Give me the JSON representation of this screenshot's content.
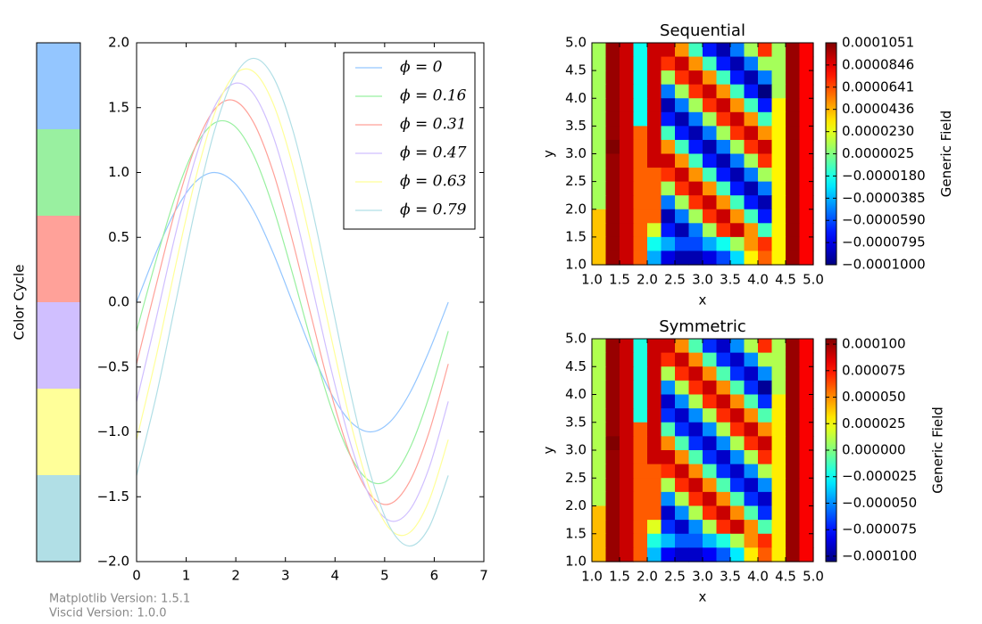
{
  "chart_data": [
    {
      "type": "swatches",
      "label": "Color Cycle",
      "colors": [
        "#94c6ff",
        "#99f0a0",
        "#ffa199",
        "#d0bfff",
        "#ffff99",
        "#b1dfe6"
      ]
    },
    {
      "type": "line",
      "xlim": [
        0,
        7
      ],
      "ylim": [
        -2,
        2
      ],
      "xticks": [
        0,
        1,
        2,
        3,
        4,
        5,
        6,
        7
      ],
      "yticks": [
        {
          "value": -2,
          "label": "−2.0"
        },
        {
          "value": -1.5,
          "label": "−1.5"
        },
        {
          "value": -1,
          "label": "−1.0"
        },
        {
          "value": -0.5,
          "label": "−0.5"
        },
        {
          "value": 0,
          "label": "0.0"
        },
        0.5,
        {
          "value": 1,
          "label": "1.0"
        },
        1.5,
        {
          "value": 2,
          "label": "2.0"
        }
      ],
      "legend": "upper right",
      "x": [
        0,
        0.393,
        0.785,
        1.178,
        1.571,
        1.963,
        2.356,
        2.749,
        3.142,
        3.534,
        3.927,
        4.32,
        4.712,
        5.105,
        5.498,
        5.89,
        6.283
      ],
      "series": [
        {
          "name": "ϕ = 0",
          "color": "#94c6ff",
          "values": [
            0,
            0.383,
            0.707,
            0.924,
            1,
            0.924,
            0.707,
            0.383,
            0,
            -0.383,
            -0.707,
            -0.924,
            -1,
            -0.924,
            -0.707,
            -0.383,
            0
          ]
        },
        {
          "name": "ϕ = 0.16",
          "color": "#99f0a0",
          "values": [
            -0.223,
            0.323,
            0.82,
            1.192,
            1.382,
            1.362,
            1.135,
            0.735,
            0.223,
            -0.323,
            -0.82,
            -1.192,
            -1.382,
            -1.362,
            -1.135,
            -0.735,
            -0.223
          ]
        },
        {
          "name": "ϕ = 0.31",
          "color": "#ffa199",
          "values": [
            -0.476,
            0.129,
            0.714,
            1.191,
            1.486,
            1.555,
            1.387,
            1.009,
            0.476,
            -0.129,
            -0.714,
            -1.191,
            -1.486,
            -1.555,
            -1.387,
            -1.009,
            -0.476
          ]
        },
        {
          "name": "ϕ = 0.47",
          "color": "#d0bfff",
          "values": [
            -0.765,
            -0.13,
            0.525,
            1.099,
            1.507,
            1.685,
            1.607,
            1.284,
            0.765,
            0.13,
            -0.525,
            -1.099,
            -1.507,
            -1.685,
            -1.607,
            -1.284,
            -0.765
          ]
        },
        {
          "name": "ϕ = 0.63",
          "color": "#ffff99",
          "values": [
            -1.06,
            -0.423,
            0.279,
            0.937,
            1.454,
            1.749,
            1.778,
            1.535,
            1.06,
            0.423,
            -0.279,
            -0.937,
            -1.454,
            -1.749,
            -1.778,
            -1.535,
            -1.06
          ]
        },
        {
          "name": "ϕ = 0.79",
          "color": "#b1dfe6",
          "values": [
            -1.336,
            -0.728,
            -0.009,
            0.711,
            1.323,
            1.733,
            1.88,
            1.74,
            1.336,
            0.728,
            0.009,
            -0.711,
            -1.323,
            -1.733,
            -1.88,
            -1.74,
            -1.336
          ]
        }
      ]
    },
    {
      "type": "heatmap",
      "title": "Sequential",
      "xlabel": "x",
      "ylabel": "y",
      "colorbar_label": "Generic Field",
      "colormap": "jet",
      "xlim": [
        1,
        5
      ],
      "ylim": [
        1,
        5
      ],
      "clim": [
        -0.0001,
        0.0001051
      ],
      "xticks": [
        {
          "value": 1,
          "label": "1.0"
        },
        1.5,
        {
          "value": 2,
          "label": "2.0"
        },
        2.5,
        {
          "value": 3,
          "label": "3.0"
        },
        3.5,
        {
          "value": 4,
          "label": "4.0"
        },
        4.5,
        {
          "value": 5,
          "label": "5.0"
        }
      ],
      "yticks": [
        {
          "value": 1,
          "label": "1.0"
        },
        1.5,
        {
          "value": 2,
          "label": "2.0"
        },
        2.5,
        {
          "value": 3,
          "label": "3.0"
        },
        3.5,
        {
          "value": 4,
          "label": "4.0"
        },
        4.5,
        {
          "value": 5,
          "label": "5.0"
        }
      ],
      "cticks": [
        {
          "value": -0.0001,
          "label": "−0.0001000"
        },
        {
          "value": -7.95e-05,
          "label": "−0.0000795"
        },
        {
          "value": -5.9e-05,
          "label": "−0.0000590"
        },
        {
          "value": -3.85e-05,
          "label": "−0.0000385"
        },
        {
          "value": -1.8e-05,
          "label": "−0.0000180"
        },
        {
          "value": 2.5e-06,
          "label": "0.0000025"
        },
        {
          "value": 2.3e-05,
          "label": "0.0000230"
        },
        {
          "value": 4.36e-05,
          "label": "0.0000436"
        },
        {
          "value": 6.41e-05,
          "label": "0.0000641"
        },
        {
          "value": 8.46e-05,
          "label": "0.0000846"
        },
        {
          "value": 0.0001051,
          "label": "0.0001051"
        }
      ],
      "z": [
        [
          1e-05,
          0.0001,
          9e-05,
          -2e-05,
          9e-05,
          9e-05,
          5e-05,
          -1e-05,
          -7e-05,
          -9e-05,
          -5e-05,
          1e-05,
          7e-05,
          1e-05,
          0.0001,
          8e-05
        ],
        [
          1e-05,
          0.0001,
          9e-05,
          -2e-05,
          9e-05,
          7e-05,
          9e-05,
          5e-05,
          -1e-05,
          -7e-05,
          -9e-05,
          -5e-05,
          1e-05,
          1e-05,
          0.0001,
          8e-05
        ],
        [
          1e-05,
          0.0001,
          9e-05,
          -2e-05,
          9e-05,
          1e-05,
          7e-05,
          9e-05,
          5e-05,
          -1e-05,
          -7e-05,
          -9e-05,
          -5e-05,
          1e-05,
          0.0001,
          8e-05
        ],
        [
          1e-05,
          0.0001,
          9e-05,
          -2e-05,
          9e-05,
          -5e-05,
          1e-05,
          7e-05,
          9e-05,
          5e-05,
          -1e-05,
          -7e-05,
          -0.0001,
          1e-05,
          0.0001,
          8e-05
        ],
        [
          1e-05,
          0.0001,
          9e-05,
          -2e-05,
          9e-05,
          -9e-05,
          -5e-05,
          1e-05,
          7e-05,
          9e-05,
          5e-05,
          -1e-05,
          -7e-05,
          3e-05,
          0.0001,
          8e-05
        ],
        [
          1e-05,
          0.0001,
          9e-05,
          -2e-05,
          9e-05,
          -7e-05,
          -9e-05,
          -5e-05,
          1e-05,
          7e-05,
          9e-05,
          5e-05,
          -1e-05,
          3e-05,
          0.0001,
          8e-05
        ],
        [
          1e-05,
          0.0001,
          9e-05,
          6e-05,
          9e-05,
          -1e-05,
          -7e-05,
          -9e-05,
          -5e-05,
          1e-05,
          7e-05,
          9e-05,
          5e-05,
          3e-05,
          0.0001,
          8e-05
        ],
        [
          1e-05,
          0.0001051,
          9e-05,
          6e-05,
          9e-05,
          5e-05,
          -1e-05,
          -7e-05,
          -9e-05,
          -5e-05,
          1e-05,
          7e-05,
          9e-05,
          3e-05,
          0.0001,
          8e-05
        ],
        [
          1e-05,
          0.0001,
          9e-05,
          6e-05,
          9e-05,
          9e-05,
          5e-05,
          -1e-05,
          -7e-05,
          -9e-05,
          -5e-05,
          1e-05,
          7e-05,
          3e-05,
          0.0001,
          8e-05
        ],
        [
          1e-05,
          0.0001,
          9e-05,
          6e-05,
          6e-05,
          7e-05,
          9e-05,
          5e-05,
          -1e-05,
          -7e-05,
          -9e-05,
          -5e-05,
          1e-05,
          3e-05,
          0.0001,
          8e-05
        ],
        [
          1e-05,
          0.0001,
          9e-05,
          6e-05,
          6e-05,
          1e-05,
          7e-05,
          9e-05,
          5e-05,
          -1e-05,
          -7e-05,
          -9e-05,
          -5e-05,
          3e-05,
          0.0001,
          8e-05
        ],
        [
          1e-05,
          0.0001,
          9e-05,
          6e-05,
          6e-05,
          -5e-05,
          1e-05,
          7e-05,
          9e-05,
          5e-05,
          -1e-05,
          -7e-05,
          -9e-05,
          3e-05,
          0.0001,
          8e-05
        ],
        [
          4e-05,
          0.0001,
          9e-05,
          6e-05,
          6e-05,
          -9e-05,
          -5e-05,
          1e-05,
          7e-05,
          9e-05,
          5e-05,
          -1e-05,
          -7e-05,
          3e-05,
          0.0001,
          8e-05
        ],
        [
          4e-05,
          0.0001,
          9e-05,
          6e-05,
          2e-05,
          -7e-05,
          -9e-05,
          -5e-05,
          1e-05,
          7e-05,
          9e-05,
          5e-05,
          -1e-05,
          3e-05,
          0.0001,
          8e-05
        ],
        [
          4e-05,
          0.0001,
          9e-05,
          6e-05,
          -2e-05,
          -4e-05,
          -6e-05,
          -6e-05,
          -4e-05,
          -2e-05,
          1e-05,
          5e-05,
          7e-05,
          3e-05,
          0.0001,
          8e-05
        ],
        [
          4e-05,
          0.0001,
          9e-05,
          6e-05,
          -4e-05,
          -8e-05,
          -9e-05,
          -9e-05,
          -8e-05,
          -6e-05,
          -3e-05,
          3e-05,
          6e-05,
          3e-05,
          0.0001,
          8e-05
        ]
      ]
    },
    {
      "type": "heatmap",
      "title": "Symmetric",
      "xlabel": "x",
      "ylabel": "y",
      "colorbar_label": "Generic Field",
      "colormap": "jet",
      "xlim": [
        1,
        5
      ],
      "ylim": [
        1,
        5
      ],
      "clim": [
        -0.0001051,
        0.0001051
      ],
      "xticks": [
        {
          "value": 1,
          "label": "1.0"
        },
        1.5,
        {
          "value": 2,
          "label": "2.0"
        },
        2.5,
        {
          "value": 3,
          "label": "3.0"
        },
        3.5,
        {
          "value": 4,
          "label": "4.0"
        },
        4.5,
        {
          "value": 5,
          "label": "5.0"
        }
      ],
      "yticks": [
        {
          "value": 1,
          "label": "1.0"
        },
        1.5,
        {
          "value": 2,
          "label": "2.0"
        },
        2.5,
        {
          "value": 3,
          "label": "3.0"
        },
        3.5,
        {
          "value": 4,
          "label": "4.0"
        },
        4.5,
        {
          "value": 5,
          "label": "5.0"
        }
      ],
      "cticks": [
        {
          "value": -0.0001,
          "label": "−0.000100"
        },
        {
          "value": -7.5e-05,
          "label": "−0.000075"
        },
        {
          "value": -5e-05,
          "label": "−0.000050"
        },
        {
          "value": -2.5e-05,
          "label": "−0.000025"
        },
        {
          "value": 0,
          "label": "0.000000"
        },
        {
          "value": 2.5e-05,
          "label": "0.000025"
        },
        {
          "value": 5e-05,
          "label": "0.000050"
        },
        {
          "value": 7.5e-05,
          "label": "0.000075"
        },
        {
          "value": 0.0001,
          "label": "0.000100"
        }
      ],
      "z": [
        [
          1e-05,
          0.0001,
          9e-05,
          -2e-05,
          9e-05,
          9e-05,
          5e-05,
          -1e-05,
          -7e-05,
          -9e-05,
          -5e-05,
          1e-05,
          7e-05,
          1e-05,
          0.0001,
          8e-05
        ],
        [
          1e-05,
          0.0001,
          9e-05,
          -2e-05,
          9e-05,
          7e-05,
          9e-05,
          5e-05,
          -1e-05,
          -7e-05,
          -9e-05,
          -5e-05,
          1e-05,
          1e-05,
          0.0001,
          8e-05
        ],
        [
          1e-05,
          0.0001,
          9e-05,
          -2e-05,
          9e-05,
          1e-05,
          7e-05,
          9e-05,
          5e-05,
          -1e-05,
          -7e-05,
          -9e-05,
          -5e-05,
          1e-05,
          0.0001,
          8e-05
        ],
        [
          1e-05,
          0.0001,
          9e-05,
          -2e-05,
          9e-05,
          -5e-05,
          1e-05,
          7e-05,
          9e-05,
          5e-05,
          -1e-05,
          -7e-05,
          -0.0001,
          1e-05,
          0.0001,
          8e-05
        ],
        [
          1e-05,
          0.0001,
          9e-05,
          -2e-05,
          9e-05,
          -9e-05,
          -5e-05,
          1e-05,
          7e-05,
          9e-05,
          5e-05,
          -1e-05,
          -7e-05,
          3e-05,
          0.0001,
          8e-05
        ],
        [
          1e-05,
          0.0001,
          9e-05,
          -2e-05,
          9e-05,
          -7e-05,
          -9e-05,
          -5e-05,
          1e-05,
          7e-05,
          9e-05,
          5e-05,
          -1e-05,
          3e-05,
          0.0001,
          8e-05
        ],
        [
          1e-05,
          0.0001,
          9e-05,
          6e-05,
          9e-05,
          -1e-05,
          -7e-05,
          -9e-05,
          -5e-05,
          1e-05,
          7e-05,
          9e-05,
          5e-05,
          3e-05,
          0.0001,
          8e-05
        ],
        [
          1e-05,
          0.0001051,
          9e-05,
          6e-05,
          9e-05,
          5e-05,
          -1e-05,
          -7e-05,
          -9e-05,
          -5e-05,
          1e-05,
          7e-05,
          9e-05,
          3e-05,
          0.0001,
          8e-05
        ],
        [
          1e-05,
          0.0001,
          9e-05,
          6e-05,
          9e-05,
          9e-05,
          5e-05,
          -1e-05,
          -7e-05,
          -9e-05,
          -5e-05,
          1e-05,
          7e-05,
          3e-05,
          0.0001,
          8e-05
        ],
        [
          1e-05,
          0.0001,
          9e-05,
          6e-05,
          6e-05,
          7e-05,
          9e-05,
          5e-05,
          -1e-05,
          -7e-05,
          -9e-05,
          -5e-05,
          1e-05,
          3e-05,
          0.0001,
          8e-05
        ],
        [
          1e-05,
          0.0001,
          9e-05,
          6e-05,
          6e-05,
          1e-05,
          7e-05,
          9e-05,
          5e-05,
          -1e-05,
          -7e-05,
          -9e-05,
          -5e-05,
          3e-05,
          0.0001,
          8e-05
        ],
        [
          1e-05,
          0.0001,
          9e-05,
          6e-05,
          6e-05,
          -5e-05,
          1e-05,
          7e-05,
          9e-05,
          5e-05,
          -1e-05,
          -7e-05,
          -9e-05,
          3e-05,
          0.0001,
          8e-05
        ],
        [
          4e-05,
          0.0001,
          9e-05,
          6e-05,
          6e-05,
          -9e-05,
          -5e-05,
          1e-05,
          7e-05,
          9e-05,
          5e-05,
          -1e-05,
          -7e-05,
          3e-05,
          0.0001,
          8e-05
        ],
        [
          4e-05,
          0.0001,
          9e-05,
          6e-05,
          2e-05,
          -7e-05,
          -9e-05,
          -5e-05,
          1e-05,
          7e-05,
          9e-05,
          5e-05,
          -1e-05,
          3e-05,
          0.0001,
          8e-05
        ],
        [
          4e-05,
          0.0001,
          9e-05,
          6e-05,
          -2e-05,
          -4e-05,
          -6e-05,
          -6e-05,
          -4e-05,
          -2e-05,
          1e-05,
          5e-05,
          7e-05,
          3e-05,
          0.0001,
          8e-05
        ],
        [
          4e-05,
          0.0001,
          9e-05,
          6e-05,
          -4e-05,
          -8e-05,
          -9e-05,
          -9e-05,
          -8e-05,
          -6e-05,
          -3e-05,
          3e-05,
          6e-05,
          3e-05,
          0.0001,
          8e-05
        ]
      ]
    }
  ],
  "footer": [
    "Matplotlib Version: 1.5.1",
    "Viscid Version: 1.0.0"
  ]
}
